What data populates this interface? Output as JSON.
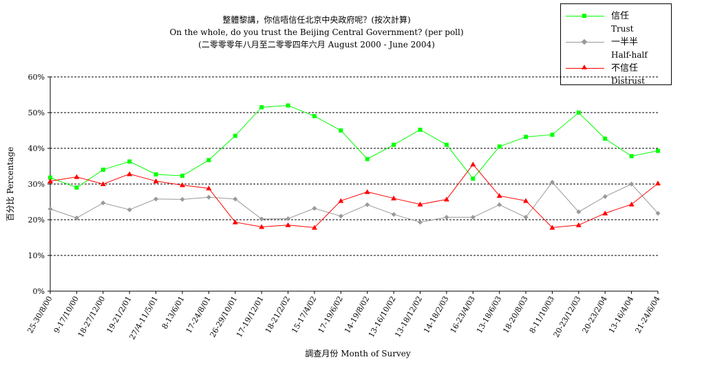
{
  "titles": {
    "line1": "整體黎講，你信唔信任北京中央政府呢？(按次計算)",
    "line2": "On the whole, do you trust the Beijing Central Government?  (per poll)",
    "line3": "(二零零零年八月至二零零四年六月 August 2000 - June 2004)"
  },
  "legend": {
    "trust": {
      "zh": "信任",
      "en": "Trust"
    },
    "half": {
      "zh": "一半半",
      "en": "Half-half"
    },
    "distrust": {
      "zh": "不信任",
      "en": "Distrust"
    }
  },
  "colors": {
    "trust": "#00ff00",
    "half": "#999999",
    "distrust": "#ff0000",
    "grid": "#000000"
  },
  "chart_data": {
    "type": "line",
    "title": "On the whole, do you trust the Beijing Central Government?  (per poll)",
    "xlabel": "調查月份 Month of Survey",
    "ylabel": "百分比 Percentage",
    "ylim": [
      0,
      60
    ],
    "yticks": [
      "0%",
      "10%",
      "20%",
      "30%",
      "40%",
      "50%",
      "60%"
    ],
    "grid": true,
    "legend_position": "top-right",
    "categories": [
      "25-30/8/00",
      "9-17/10/00",
      "18-27/12/00",
      "19-21/2/01",
      "27/4-11/5/01",
      "8-13/6/01",
      "17-24/8/01",
      "26-29/10/01",
      "17-19/12/01",
      "18-21/2/02",
      "15-17/4/02",
      "17-19/6/02",
      "14-19/8/02",
      "13-16/10/02",
      "13-18/12/02",
      "14-18/2/03",
      "16-23/4/03",
      "13-18/6/03",
      "18-20/8/03",
      "8-11/10/03",
      "20-23/12/03",
      "20-23/2/04",
      "13-16/4/04",
      "21-24/6/04"
    ],
    "series": [
      {
        "name": "Trust",
        "key": "trust",
        "marker": "square",
        "values": [
          31.8,
          29.0,
          34.0,
          36.3,
          32.7,
          32.3,
          36.7,
          43.5,
          51.5,
          52.0,
          49.0,
          45.0,
          37.0,
          41.0,
          45.2,
          41.0,
          31.5,
          40.5,
          43.2,
          43.8,
          50.0,
          42.7,
          37.8,
          39.3
        ]
      },
      {
        "name": "Half-half",
        "key": "half",
        "marker": "diamond",
        "values": [
          23.0,
          20.5,
          24.7,
          22.8,
          25.8,
          25.7,
          26.3,
          25.8,
          20.2,
          20.3,
          23.2,
          21.0,
          24.2,
          21.5,
          19.3,
          20.7,
          20.7,
          24.2,
          20.7,
          30.5,
          22.2,
          26.5,
          30.0,
          21.8
        ]
      },
      {
        "name": "Distrust",
        "key": "distrust",
        "marker": "triangle",
        "values": [
          30.8,
          32.0,
          30.0,
          32.8,
          30.8,
          29.7,
          28.8,
          19.3,
          18.0,
          18.5,
          17.8,
          25.3,
          27.8,
          26.0,
          24.3,
          25.7,
          35.5,
          26.7,
          25.3,
          17.8,
          18.5,
          21.8,
          24.3,
          30.2
        ]
      }
    ]
  }
}
